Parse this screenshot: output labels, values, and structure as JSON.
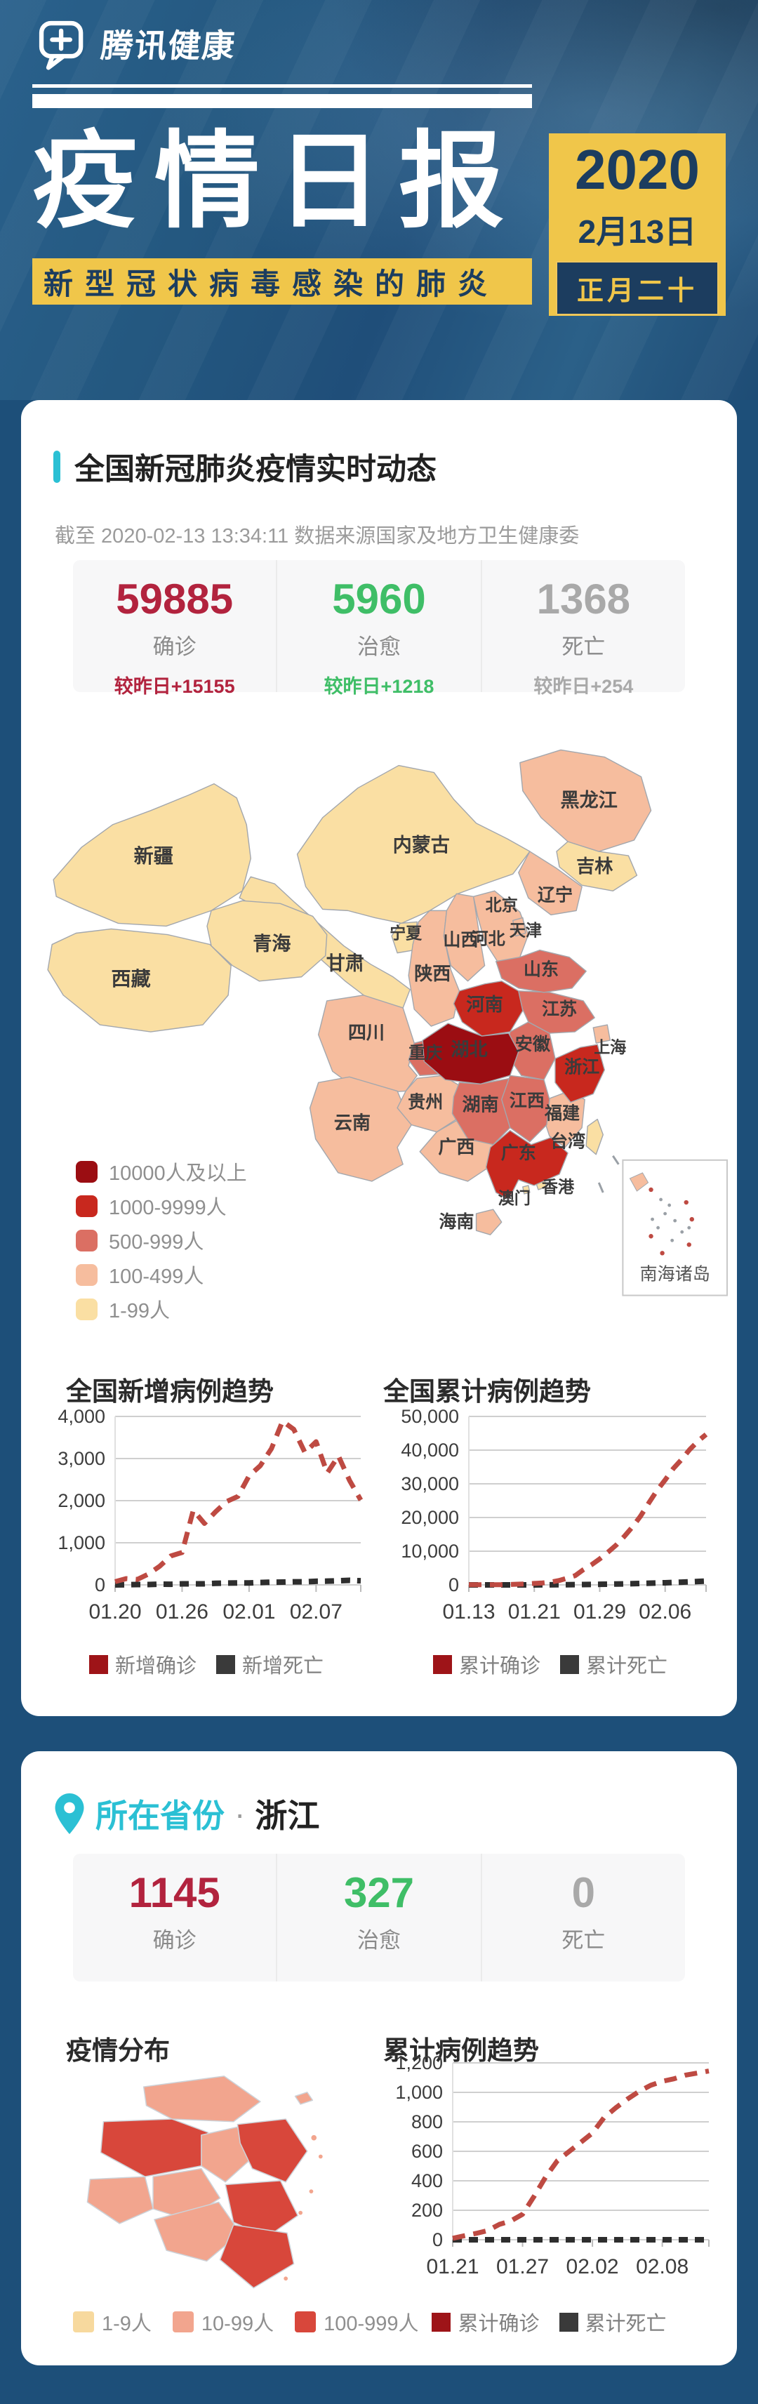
{
  "theme": {
    "bg": "#1D4F79",
    "accent": "#2BC0D4",
    "yellow": "#F0C64A",
    "navy": "#1C3D5F",
    "crimson": "#B2233E",
    "green": "#3FBE67",
    "gray": "#A9A9A9"
  },
  "header": {
    "logo_text": "腾讯健康"
  },
  "banner": {
    "title": "疫情日报",
    "subtitle": "新型冠状病毒感染的肺炎",
    "date": {
      "year": "2020",
      "day": "2月13日",
      "lunar": "正月二十"
    }
  },
  "national": {
    "section_title": "全国新冠肺炎疫情实时动态",
    "updated": "截至 2020-02-13 13:34:11 数据来源国家及地方卫生健康委",
    "stats": [
      {
        "value": "59885",
        "label": "确诊",
        "delta": "较昨日+15155",
        "color": "#B2233E"
      },
      {
        "value": "5960",
        "label": "治愈",
        "delta": "较昨日+1218",
        "color": "#3FBE67"
      },
      {
        "value": "1368",
        "label": "死亡",
        "delta": "较昨日+254",
        "color": "#A9A9A9"
      }
    ],
    "map_legend": [
      {
        "label": "10000人及以上",
        "color": "#9B0D12"
      },
      {
        "label": "1000-9999人",
        "color": "#C8281E"
      },
      {
        "label": "500-999人",
        "color": "#DB6F63"
      },
      {
        "label": "100-499人",
        "color": "#F6BD9E"
      },
      {
        "label": "1-99人",
        "color": "#FADFA3"
      }
    ],
    "inset_label": "南海诸岛",
    "provinces": [
      {
        "name": "湖北",
        "level": 0
      },
      {
        "name": "广东",
        "level": 1
      },
      {
        "name": "河南",
        "level": 1
      },
      {
        "name": "浙江",
        "level": 1
      },
      {
        "name": "湖南",
        "level": 2
      },
      {
        "name": "安徽",
        "level": 2
      },
      {
        "name": "江西",
        "level": 2
      },
      {
        "name": "江苏",
        "level": 2
      },
      {
        "name": "重庆",
        "level": 2
      },
      {
        "name": "山东",
        "level": 2
      },
      {
        "name": "四川",
        "level": 3
      },
      {
        "name": "黑龙江",
        "level": 3
      },
      {
        "name": "北京",
        "level": 3
      },
      {
        "name": "上海",
        "level": 3
      },
      {
        "name": "河北",
        "level": 3
      },
      {
        "name": "福建",
        "level": 3
      },
      {
        "name": "广西",
        "level": 3
      },
      {
        "name": "陕西",
        "level": 3
      },
      {
        "name": "云南",
        "level": 3
      },
      {
        "name": "海南",
        "level": 3
      },
      {
        "name": "贵州",
        "level": 3
      },
      {
        "name": "天津",
        "level": 3
      },
      {
        "name": "山西",
        "level": 3
      },
      {
        "name": "辽宁",
        "level": 3
      },
      {
        "name": "吉林",
        "level": 4
      },
      {
        "name": "甘肃",
        "level": 4
      },
      {
        "name": "新疆",
        "level": 4
      },
      {
        "name": "内蒙古",
        "level": 4
      },
      {
        "name": "宁夏",
        "level": 4
      },
      {
        "name": "青海",
        "level": 4
      },
      {
        "name": "西藏",
        "level": 4
      },
      {
        "name": "台湾",
        "level": 4
      },
      {
        "name": "香港",
        "level": 4
      },
      {
        "name": "澳门",
        "level": 4
      }
    ]
  },
  "province_card": {
    "title_prefix": "所在省份",
    "separator": "·",
    "province": "浙江",
    "stats": [
      {
        "value": "1145",
        "label": "确诊",
        "color": "#B2233E"
      },
      {
        "value": "327",
        "label": "治愈",
        "color": "#3FBE67"
      },
      {
        "value": "0",
        "label": "死亡",
        "color": "#A9A9A9"
      }
    ],
    "dist_title": "疫情分布",
    "dist_legend": [
      {
        "label": "1-9人",
        "color": "#F7D99E"
      },
      {
        "label": "10-99人",
        "color": "#F2A58E"
      },
      {
        "label": "100-999人",
        "color": "#D8473B"
      }
    ],
    "map_region_levels": [
      1,
      2,
      1,
      2,
      1,
      1,
      1,
      1,
      2,
      2
    ]
  },
  "chart_data": [
    {
      "type": "line",
      "title": "全国新增病例趋势",
      "x": [
        "01.20",
        "01.21",
        "01.22",
        "01.23",
        "01.24",
        "01.25",
        "01.26",
        "01.27",
        "01.28",
        "01.29",
        "01.30",
        "01.31",
        "02.01",
        "02.02",
        "02.03",
        "02.04",
        "02.05",
        "02.06",
        "02.07",
        "02.08",
        "02.09",
        "02.10",
        "02.11"
      ],
      "series": [
        {
          "name": "新增确诊",
          "color": "#BE4A42",
          "swatch": "#9E1418",
          "values": [
            77,
            149,
            131,
            259,
            444,
            688,
            769,
            1771,
            1459,
            1737,
            1982,
            2102,
            2590,
            2829,
            3235,
            3887,
            3694,
            3143,
            3399,
            2656,
            3062,
            2478,
            2015
          ]
        },
        {
          "name": "新增死亡",
          "color": "#2E2E2E",
          "swatch": "#3A3A3A",
          "values": [
            0,
            3,
            8,
            8,
            16,
            15,
            24,
            26,
            26,
            38,
            43,
            46,
            45,
            57,
            64,
            66,
            73,
            73,
            86,
            89,
            97,
            108,
            97
          ]
        }
      ],
      "ylim": [
        0,
        4000
      ],
      "yticks": [
        0,
        1000,
        2000,
        3000,
        4000
      ],
      "xticks": [
        {
          "label": "01.20",
          "i": 0
        },
        {
          "label": "01.26",
          "i": 6
        },
        {
          "label": "02.01",
          "i": 12
        },
        {
          "label": "02.07",
          "i": 18
        }
      ],
      "grid": true,
      "legend_position": "bottom"
    },
    {
      "type": "line",
      "title": "全国累计病例趋势",
      "x": [
        "01.13",
        "01.14",
        "01.15",
        "01.16",
        "01.17",
        "01.18",
        "01.19",
        "01.20",
        "01.21",
        "01.22",
        "01.23",
        "01.24",
        "01.25",
        "01.26",
        "01.27",
        "01.28",
        "01.29",
        "01.30",
        "01.31",
        "02.01",
        "02.02",
        "02.03",
        "02.04",
        "02.05",
        "02.06",
        "02.07",
        "02.08",
        "02.09",
        "02.10",
        "02.11"
      ],
      "series": [
        {
          "name": "累计确诊",
          "color": "#BE4A42",
          "swatch": "#9E1418",
          "values": [
            41,
            41,
            41,
            45,
            62,
            121,
            198,
            291,
            440,
            571,
            830,
            1287,
            1975,
            2744,
            4515,
            5974,
            7711,
            9692,
            11791,
            14380,
            17205,
            20438,
            24324,
            28018,
            31161,
            34546,
            37198,
            40171,
            42638,
            44653
          ]
        },
        {
          "name": "累计死亡",
          "color": "#2E2E2E",
          "swatch": "#3A3A3A",
          "values": [
            1,
            1,
            2,
            2,
            2,
            3,
            3,
            6,
            9,
            17,
            25,
            41,
            56,
            80,
            106,
            132,
            170,
            213,
            259,
            304,
            361,
            425,
            490,
            563,
            636,
            722,
            811,
            908,
            1016,
            1113
          ]
        }
      ],
      "ylim": [
        0,
        50000
      ],
      "yticks": [
        0,
        10000,
        20000,
        30000,
        40000,
        50000
      ],
      "xticks": [
        {
          "label": "01.13",
          "i": 0
        },
        {
          "label": "01.21",
          "i": 8
        },
        {
          "label": "01.29",
          "i": 16
        },
        {
          "label": "02.06",
          "i": 24
        }
      ],
      "grid": true,
      "legend_position": "bottom"
    },
    {
      "type": "line",
      "title": "累计病例趋势",
      "x": [
        "01.21",
        "01.22",
        "01.23",
        "01.24",
        "01.25",
        "01.26",
        "01.27",
        "01.28",
        "01.29",
        "01.30",
        "01.31",
        "02.01",
        "02.02",
        "02.03",
        "02.04",
        "02.05",
        "02.06",
        "02.07",
        "02.08",
        "02.09",
        "02.10",
        "02.11",
        "02.12"
      ],
      "series": [
        {
          "name": "累计确诊",
          "color": "#BE4A42",
          "swatch": "#9E1418",
          "values": [
            10,
            27,
            43,
            62,
            104,
            128,
            173,
            296,
            428,
            537,
            599,
            661,
            724,
            829,
            895,
            954,
            1006,
            1048,
            1075,
            1092,
            1117,
            1131,
            1145
          ]
        },
        {
          "name": "累计死亡",
          "color": "#2E2E2E",
          "swatch": "#3A3A3A",
          "values": [
            0,
            0,
            0,
            0,
            0,
            0,
            0,
            0,
            0,
            0,
            0,
            0,
            0,
            0,
            0,
            0,
            0,
            0,
            0,
            0,
            0,
            0,
            0
          ]
        }
      ],
      "ylim": [
        0,
        1200
      ],
      "yticks": [
        0,
        200,
        400,
        600,
        800,
        1000,
        1200
      ],
      "xticks": [
        {
          "label": "01.21",
          "i": 0
        },
        {
          "label": "01.27",
          "i": 6
        },
        {
          "label": "02.02",
          "i": 12
        },
        {
          "label": "02.08",
          "i": 18
        }
      ],
      "grid": true,
      "legend_position": "bottom"
    }
  ]
}
